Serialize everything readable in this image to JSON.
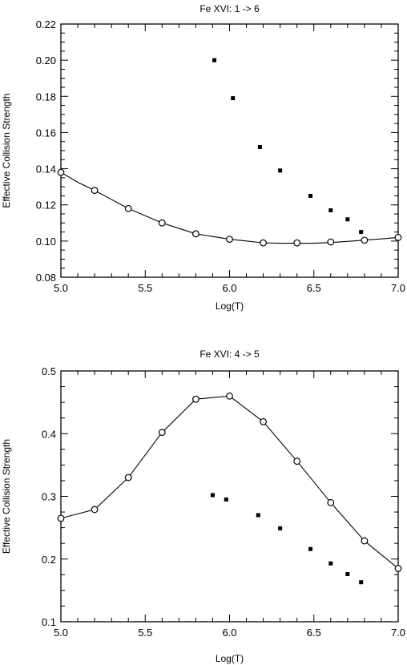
{
  "chart_data": [
    {
      "type": "scatter",
      "title": "Fe XVI: 1 -> 6",
      "xlabel": "Log(T)",
      "ylabel": "Effective Collision Strength",
      "xlim": [
        5.0,
        7.0
      ],
      "ylim": [
        0.08,
        0.22
      ],
      "x_ticks": [
        "5.0",
        "5.5",
        "6.0",
        "6.5",
        "7.0"
      ],
      "y_ticks": [
        "0.08",
        "0.10",
        "0.12",
        "0.14",
        "0.16",
        "0.18",
        "0.20",
        "0.22"
      ],
      "grid": false,
      "series": [
        {
          "style": "open-circles-with-line",
          "x": [
            5.0,
            5.2,
            5.4,
            5.6,
            5.8,
            6.0,
            6.2,
            6.4,
            6.6,
            6.8,
            7.0
          ],
          "y": [
            0.138,
            0.128,
            0.118,
            0.11,
            0.104,
            0.101,
            0.099,
            0.099,
            0.0995,
            0.1005,
            0.102
          ],
          "line_x": [
            5.0,
            5.1,
            5.2,
            5.3,
            5.4,
            5.5,
            5.6,
            5.7,
            5.8,
            5.9,
            6.0,
            6.1,
            6.2,
            6.3,
            6.4,
            6.5,
            6.6,
            6.7,
            6.8,
            6.9,
            7.0
          ],
          "line_y": [
            0.138,
            0.1325,
            0.128,
            0.123,
            0.118,
            0.114,
            0.11,
            0.107,
            0.104,
            0.1025,
            0.101,
            0.1,
            0.099,
            0.0988,
            0.0988,
            0.0988,
            0.0992,
            0.0998,
            0.1005,
            0.1012,
            0.102
          ]
        },
        {
          "style": "filled-squares",
          "x": [
            5.91,
            6.02,
            6.18,
            6.3,
            6.48,
            6.6,
            6.7,
            6.78
          ],
          "y": [
            0.2,
            0.179,
            0.152,
            0.139,
            0.125,
            0.117,
            0.112,
            0.105
          ]
        }
      ]
    },
    {
      "type": "scatter",
      "title": "Fe XVI: 4 -> 5",
      "xlabel": "Log(T)",
      "ylabel": "Effective Collision Strength",
      "xlim": [
        5.0,
        7.0
      ],
      "ylim": [
        0.1,
        0.5
      ],
      "x_ticks": [
        "5.0",
        "5.5",
        "6.0",
        "6.5",
        "7.0"
      ],
      "y_ticks": [
        "0.1",
        "0.2",
        "0.3",
        "0.4",
        "0.5"
      ],
      "grid": false,
      "series": [
        {
          "style": "open-circles-with-line",
          "x": [
            5.0,
            5.2,
            5.4,
            5.6,
            5.8,
            6.0,
            6.2,
            6.4,
            6.6,
            6.8,
            7.0
          ],
          "y": [
            0.265,
            0.279,
            0.33,
            0.402,
            0.455,
            0.46,
            0.419,
            0.356,
            0.29,
            0.229,
            0.185
          ],
          "line_x": [
            5.0,
            5.2,
            5.4,
            5.6,
            5.8,
            6.0,
            6.2,
            6.4,
            6.6,
            6.8,
            7.0
          ],
          "line_y": [
            0.265,
            0.279,
            0.33,
            0.402,
            0.455,
            0.46,
            0.419,
            0.356,
            0.29,
            0.229,
            0.185
          ]
        },
        {
          "style": "filled-squares",
          "x": [
            5.9,
            5.98,
            6.17,
            6.3,
            6.48,
            6.6,
            6.7,
            6.78
          ],
          "y": [
            0.302,
            0.295,
            0.27,
            0.249,
            0.216,
            0.193,
            0.176,
            0.163
          ]
        }
      ]
    }
  ]
}
